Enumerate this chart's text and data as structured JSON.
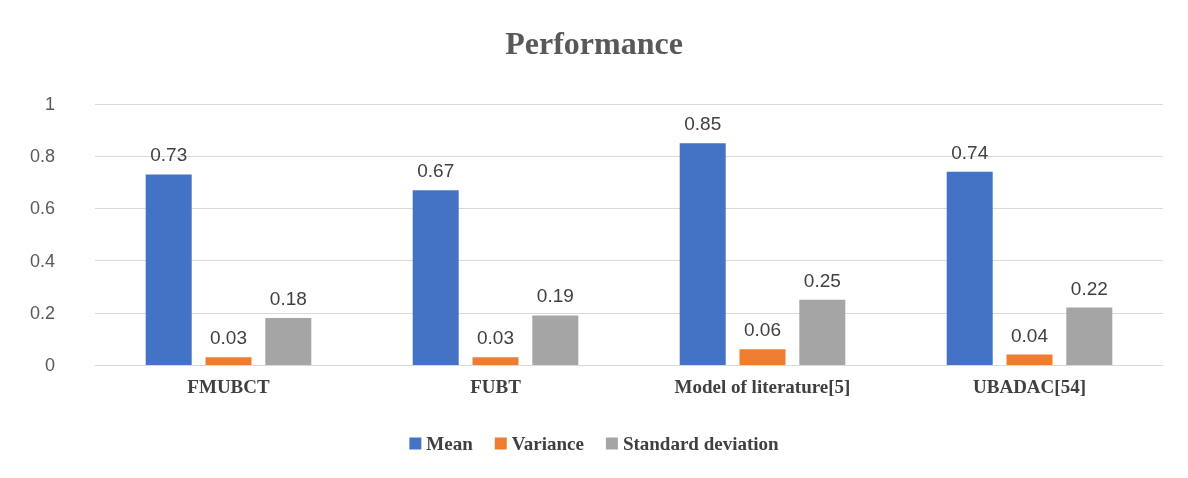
{
  "chart_data": {
    "type": "bar",
    "title": "Performance",
    "categories": [
      "FMUBCT",
      "FUBT",
      "Model of literature[5]",
      "UBADAC[54]"
    ],
    "series": [
      {
        "name": "Mean",
        "color": "#4472c4",
        "values": [
          0.73,
          0.67,
          0.85,
          0.74
        ]
      },
      {
        "name": "Variance",
        "color": "#ed7d31",
        "values": [
          0.03,
          0.03,
          0.06,
          0.04
        ]
      },
      {
        "name": "Standard deviation",
        "color": "#a5a5a5",
        "values": [
          0.18,
          0.19,
          0.25,
          0.22
        ]
      }
    ],
    "ylim": [
      0,
      1
    ],
    "yticks": [
      0,
      0.2,
      0.4,
      0.6,
      0.8,
      1
    ],
    "grid": "y",
    "legend": "bottom",
    "data_labels": true
  }
}
